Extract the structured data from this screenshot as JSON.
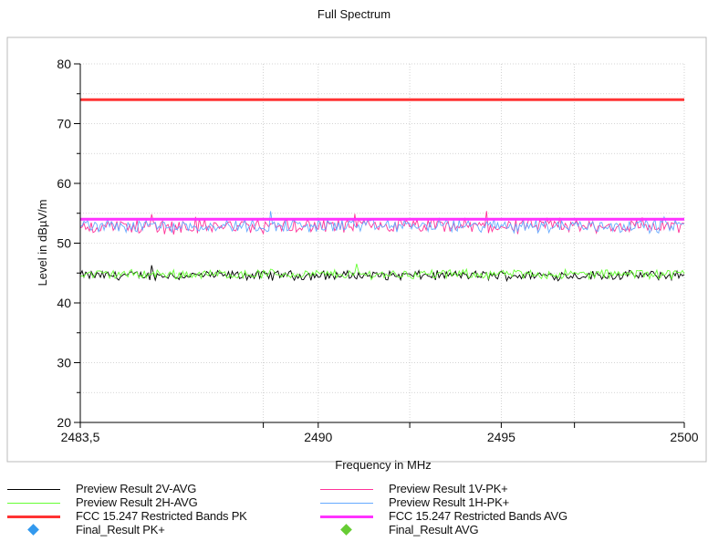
{
  "chart_data": {
    "type": "line",
    "title": "Full Spectrum",
    "xlabel": "Frequency in MHz",
    "ylabel": "Level in dBµV/m",
    "xlim": [
      2483.5,
      2500
    ],
    "ylim": [
      20,
      80
    ],
    "xticks": [
      2483.5,
      2490,
      2495,
      2500
    ],
    "xtick_labels": [
      "2483,5",
      "2490",
      "2495",
      "2500"
    ],
    "yticks": [
      20,
      30,
      40,
      50,
      60,
      70,
      80
    ],
    "grid": true,
    "legend_position": "bottom",
    "series": [
      {
        "name": "Preview Result 2V-AVG",
        "color": "#000000",
        "style": "noisy",
        "mean": 44.6,
        "spread": 0.7
      },
      {
        "name": "Preview Result 2H-AVG",
        "color": "#66ff33",
        "style": "noisy",
        "mean": 44.8,
        "spread": 0.7
      },
      {
        "name": "FCC 15.247 Restricted Bands PK",
        "color": "#ff3333",
        "style": "limit",
        "values": [
          74,
          74
        ]
      },
      {
        "name": "Final_Result PK+",
        "color": "#3399ee",
        "style": "marker"
      },
      {
        "name": "Preview Result 1V-PK+",
        "color": "#ff3399",
        "style": "noisy",
        "mean": 52.8,
        "spread": 1.1
      },
      {
        "name": "Preview Result 1H-PK+",
        "color": "#66aaff",
        "style": "noisy",
        "mean": 52.9,
        "spread": 1.0
      },
      {
        "name": "FCC 15.247 Restricted Bands AVG",
        "color": "#ff33ff",
        "style": "limit",
        "values": [
          54,
          54
        ]
      },
      {
        "name": "Final_Result AVG",
        "color": "#66cc33",
        "style": "marker"
      }
    ]
  }
}
